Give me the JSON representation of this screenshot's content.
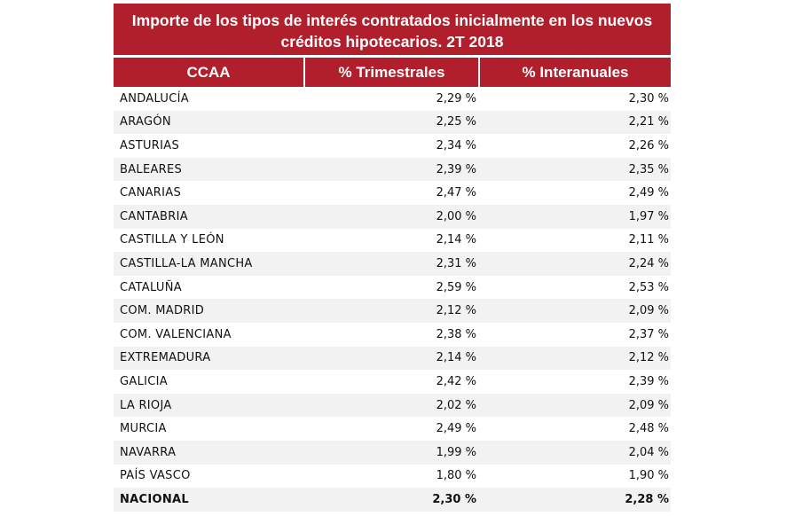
{
  "title": {
    "line1": "Importe de los tipos de interés contratados inicialmente en los nuevos",
    "line2": "créditos hipotecarios.  2T 2018"
  },
  "columns": [
    "CCAA",
    "% Trimestrales",
    "% Interanuales"
  ],
  "rows": [
    {
      "ccaa": "ANDALUCÍA",
      "trimestrales": "2,29 %",
      "interanuales": "2,30 %"
    },
    {
      "ccaa": "ARAGÓN",
      "trimestrales": "2,25 %",
      "interanuales": "2,21 %"
    },
    {
      "ccaa": "ASTURIAS",
      "trimestrales": "2,34 %",
      "interanuales": "2,26 %"
    },
    {
      "ccaa": "BALEARES",
      "trimestrales": "2,39 %",
      "interanuales": "2,35 %"
    },
    {
      "ccaa": "CANARIAS",
      "trimestrales": "2,47 %",
      "interanuales": "2,49 %"
    },
    {
      "ccaa": "CANTABRIA",
      "trimestrales": "2,00 %",
      "interanuales": "1,97 %"
    },
    {
      "ccaa": "CASTILLA Y LEÓN",
      "trimestrales": "2,14 %",
      "interanuales": "2,11 %"
    },
    {
      "ccaa": "CASTILLA-LA MANCHA",
      "trimestrales": "2,31 %",
      "interanuales": "2,24 %"
    },
    {
      "ccaa": "CATALUÑA",
      "trimestrales": "2,59 %",
      "interanuales": "2,53 %"
    },
    {
      "ccaa": "COM. MADRID",
      "trimestrales": "2,12 %",
      "interanuales": "2,09 %"
    },
    {
      "ccaa": "COM. VALENCIANA",
      "trimestrales": "2,38 %",
      "interanuales": "2,37 %"
    },
    {
      "ccaa": "EXTREMADURA",
      "trimestrales": "2,14 %",
      "interanuales": "2,12 %"
    },
    {
      "ccaa": "GALICIA",
      "trimestrales": "2,42 %",
      "interanuales": "2,39 %"
    },
    {
      "ccaa": "LA RIOJA",
      "trimestrales": "2,02 %",
      "interanuales": "2,09 %"
    },
    {
      "ccaa": "MURCIA",
      "trimestrales": "2,49 %",
      "interanuales": "2,48 %"
    },
    {
      "ccaa": "NAVARRA",
      "trimestrales": "1,99 %",
      "interanuales": "2,04 %"
    },
    {
      "ccaa": "PAÍS VASCO",
      "trimestrales": "1,80 %",
      "interanuales": "1,90 %"
    },
    {
      "ccaa": "NACIONAL",
      "trimestrales": "2,30 %",
      "interanuales": "2,28 %",
      "total": true
    }
  ],
  "colors": {
    "header": "#b21f2c",
    "stripe": "#f2f2f2",
    "text": "#111111"
  },
  "chart_data": {
    "type": "table",
    "title": "Importe de los tipos de interés contratados inicialmente en los nuevos créditos hipotecarios.  2T 2018",
    "columns": [
      "CCAA",
      "% Trimestrales",
      "% Interanuales"
    ],
    "categories": [
      "ANDALUCÍA",
      "ARAGÓN",
      "ASTURIAS",
      "BALEARES",
      "CANARIAS",
      "CANTABRIA",
      "CASTILLA Y LEÓN",
      "CASTILLA-LA MANCHA",
      "CATALUÑA",
      "COM. MADRID",
      "COM. VALENCIANA",
      "EXTREMADURA",
      "GALICIA",
      "LA RIOJA",
      "MURCIA",
      "NAVARRA",
      "PAÍS VASCO",
      "NACIONAL"
    ],
    "series": [
      {
        "name": "% Trimestrales",
        "values": [
          2.29,
          2.25,
          2.34,
          2.39,
          2.47,
          2.0,
          2.14,
          2.31,
          2.59,
          2.12,
          2.38,
          2.14,
          2.42,
          2.02,
          2.49,
          1.99,
          1.8,
          2.3
        ]
      },
      {
        "name": "% Interanuales",
        "values": [
          2.3,
          2.21,
          2.26,
          2.35,
          2.49,
          1.97,
          2.11,
          2.24,
          2.53,
          2.09,
          2.37,
          2.12,
          2.39,
          2.09,
          2.48,
          2.04,
          1.9,
          2.28
        ]
      }
    ]
  }
}
